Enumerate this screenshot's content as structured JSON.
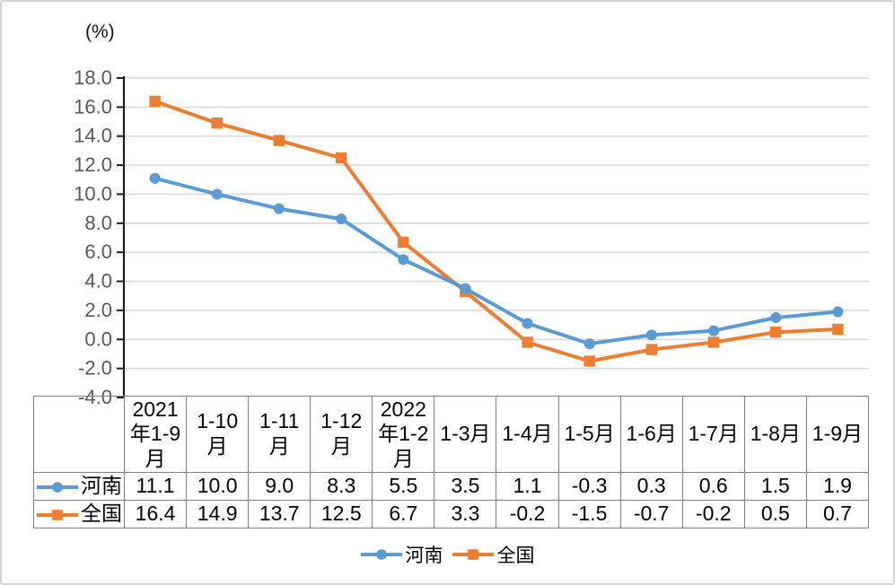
{
  "chart_data": {
    "type": "line",
    "unit_label": "(%)",
    "categories": [
      "2021年1-9月",
      "1-10月",
      "1-11月",
      "1-12月",
      "2022年1-2月",
      "1-3月",
      "1-4月",
      "1-5月",
      "1-6月",
      "1-7月",
      "1-8月",
      "1-9月"
    ],
    "series": [
      {
        "name": "河南",
        "color": "#5B9BD5",
        "marker": "circle",
        "values": [
          11.1,
          10.0,
          9.0,
          8.3,
          5.5,
          3.5,
          1.1,
          -0.3,
          0.3,
          0.6,
          1.5,
          1.9
        ]
      },
      {
        "name": "全国",
        "color": "#ED7D31",
        "marker": "square",
        "values": [
          16.4,
          14.9,
          13.7,
          12.5,
          6.7,
          3.3,
          -0.2,
          -1.5,
          -0.7,
          -0.2,
          0.5,
          0.7
        ]
      }
    ],
    "ylim": [
      -4.0,
      18.0
    ],
    "ytick_step": 2.0,
    "ytick_labels": [
      "18.0",
      "16.0",
      "14.0",
      "12.0",
      "10.0",
      "8.0",
      "6.0",
      "4.0",
      "2.0",
      "0.0",
      "-2.0",
      "-4.0"
    ],
    "grid": "horizontal-only",
    "legend_position": "bottom",
    "colors": {
      "gridline": "#D9D9D9",
      "axis": "#1f1f1f",
      "tick_label": "#595959",
      "table_border": "#828282",
      "table_text": "#000000"
    }
  }
}
